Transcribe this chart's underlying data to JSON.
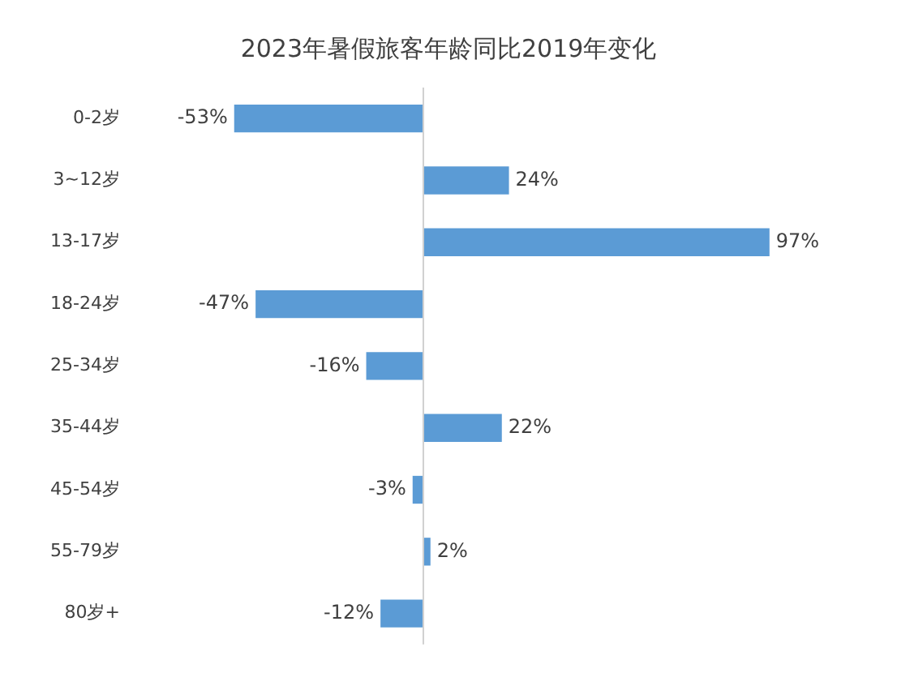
{
  "chart_data": {
    "type": "bar",
    "orientation": "horizontal",
    "title": "2023年暑假旅客年龄同比2019年变化",
    "categories": [
      "0-2岁",
      "3~12岁",
      "13-17岁",
      "18-24岁",
      "25-34岁",
      "35-44岁",
      "45-54岁",
      "55-79岁",
      "80岁+"
    ],
    "values": [
      -53,
      24,
      97,
      -47,
      -16,
      22,
      -3,
      2,
      -12
    ],
    "value_labels": [
      "-53%",
      "24%",
      "97%",
      "-47%",
      "-16%",
      "22%",
      "-3%",
      "2%",
      "-12%"
    ],
    "color": "#5b9bd5",
    "tick_labels": "y",
    "legend": false
  }
}
